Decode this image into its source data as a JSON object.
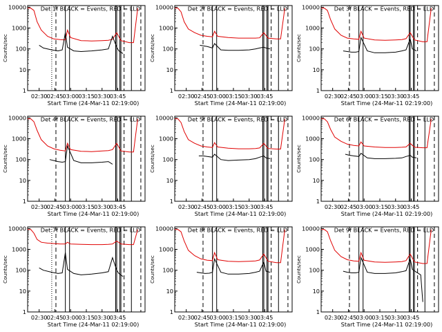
{
  "page": {
    "background": "#ffffff"
  },
  "colors": {
    "events": "#000000",
    "lld": "#e00000",
    "axis": "#000000"
  },
  "shared": {
    "ylabel": "Counts/sec",
    "xlabel": "Start Time (24-Mar-11 02:19:00)",
    "x_tick_labels": [
      "02:30",
      "02:45",
      "03:00",
      "03:15",
      "03:30",
      "03:45"
    ],
    "x_tick_minutes": [
      30,
      45,
      60,
      75,
      90,
      105
    ],
    "xlim_minutes_after_0219": [
      19,
      131
    ],
    "y_tick_labels": [
      "1",
      "10",
      "100",
      "1000",
      "10000"
    ],
    "y_tick_values": [
      1,
      10,
      100,
      1000,
      10000
    ],
    "ylim": [
      1,
      12000
    ],
    "yscale": "log"
  },
  "chart_data": [
    {
      "type": "line",
      "title": "Det 1f BLACK = Events, RED = LLD",
      "x_units": "minutes after 02:19",
      "series_colors": [
        "#000000",
        "#e00000"
      ],
      "events": {
        "x": [
          30,
          34,
          42,
          48,
          52,
          55,
          57,
          63,
          70,
          80,
          90,
          96,
          100,
          104,
          106,
          110
        ],
        "y": [
          150,
          110,
          90,
          80,
          90,
          600,
          120,
          80,
          75,
          80,
          90,
          100,
          400,
          120,
          80,
          60
        ]
      },
      "lld": {
        "x": [
          19,
          22,
          25,
          28,
          32,
          38,
          44,
          50,
          55,
          57,
          60,
          70,
          80,
          90,
          96,
          100,
          104,
          108,
          116,
          120,
          124
        ],
        "y": [
          9000,
          9000,
          7000,
          2000,
          800,
          400,
          300,
          280,
          270,
          800,
          350,
          250,
          240,
          250,
          260,
          290,
          600,
          250,
          200,
          200,
          9000
        ]
      },
      "dashed_x": [
        46,
        111,
        127
      ],
      "dotted_x": [
        42
      ],
      "solid_x": [
        55,
        59,
        103,
        104,
        107,
        108,
        118
      ]
    },
    {
      "type": "line",
      "title": "Det 2f BLACK = Events, RED = LLD",
      "x_units": "minutes after 02:19",
      "series_colors": [
        "#000000",
        "#e00000"
      ],
      "events": {
        "x": [
          43,
          46,
          50,
          55,
          57,
          63,
          70,
          80,
          90,
          96,
          100,
          104,
          106,
          110
        ],
        "y": [
          150,
          140,
          130,
          110,
          180,
          90,
          85,
          85,
          90,
          100,
          110,
          120,
          110,
          100
        ]
      },
      "lld": {
        "x": [
          19,
          22,
          25,
          28,
          32,
          38,
          44,
          50,
          55,
          57,
          60,
          70,
          80,
          90,
          96,
          100,
          104,
          108,
          116,
          120,
          124
        ],
        "y": [
          9000,
          9000,
          6000,
          2000,
          900,
          600,
          450,
          400,
          380,
          700,
          400,
          350,
          330,
          330,
          330,
          340,
          600,
          330,
          300,
          300,
          9000
        ]
      },
      "dashed_x": [
        46,
        111,
        127
      ],
      "dotted_x": [],
      "solid_x": [
        55,
        59,
        103,
        104,
        107,
        108,
        118
      ]
    },
    {
      "type": "line",
      "title": "Det 3f BLACK = Events, RED = LLD",
      "x_units": "minutes after 02:19",
      "series_colors": [
        "#000000",
        "#e00000"
      ],
      "events": {
        "x": [
          40,
          44,
          48,
          52,
          55,
          57,
          63,
          70,
          80,
          90,
          96,
          100,
          104,
          106,
          110
        ],
        "y": [
          80,
          75,
          70,
          70,
          75,
          350,
          80,
          65,
          65,
          70,
          80,
          90,
          300,
          100,
          80
        ]
      },
      "lld": {
        "x": [
          19,
          22,
          25,
          28,
          32,
          38,
          44,
          50,
          55,
          57,
          60,
          70,
          80,
          90,
          96,
          100,
          104,
          108,
          116,
          120,
          124
        ],
        "y": [
          9000,
          9000,
          7000,
          2500,
          900,
          450,
          330,
          300,
          290,
          700,
          330,
          270,
          260,
          270,
          280,
          310,
          600,
          270,
          220,
          220,
          9000
        ]
      },
      "dashed_x": [
        46,
        111,
        127
      ],
      "dotted_x": [],
      "solid_x": [
        55,
        59,
        103,
        104,
        107,
        108,
        118
      ]
    },
    {
      "type": "line",
      "title": "Det 4f BLACK = Events, RED = LLD",
      "x_units": "minutes after 02:19",
      "series_colors": [
        "#000000",
        "#e00000"
      ],
      "events": {
        "x": [
          40,
          44,
          48,
          52,
          55,
          57,
          63,
          70,
          80,
          90,
          96,
          100
        ],
        "y": [
          100,
          90,
          80,
          75,
          80,
          450,
          90,
          70,
          70,
          75,
          80,
          60
        ]
      },
      "lld": {
        "x": [
          19,
          22,
          25,
          28,
          32,
          38,
          44,
          50,
          55,
          57,
          60,
          70,
          80,
          90,
          96,
          100,
          104,
          108,
          116,
          120,
          124
        ],
        "y": [
          9000,
          9000,
          6500,
          2500,
          900,
          450,
          330,
          280,
          260,
          600,
          300,
          250,
          240,
          260,
          270,
          300,
          600,
          260,
          230,
          230,
          9000
        ]
      },
      "dashed_x": [
        46,
        111,
        127
      ],
      "dotted_x": [],
      "solid_x": [
        55,
        59,
        103,
        104,
        107,
        108,
        118
      ]
    },
    {
      "type": "line",
      "title": "Det 5f BLACK = Events, RED = LLD",
      "x_units": "minutes after 02:19",
      "series_colors": [
        "#000000",
        "#e00000"
      ],
      "events": {
        "x": [
          42,
          46,
          50,
          55,
          57,
          63,
          70,
          80,
          90,
          96,
          100,
          104,
          106,
          110
        ],
        "y": [
          150,
          150,
          140,
          130,
          180,
          100,
          90,
          95,
          100,
          110,
          130,
          150,
          120,
          110
        ]
      },
      "lld": {
        "x": [
          19,
          22,
          25,
          28,
          32,
          38,
          44,
          50,
          55,
          57,
          60,
          70,
          80,
          90,
          96,
          100,
          104,
          108,
          116,
          120,
          124
        ],
        "y": [
          9000,
          9000,
          6000,
          2200,
          900,
          600,
          450,
          400,
          380,
          650,
          400,
          350,
          330,
          330,
          340,
          360,
          600,
          340,
          320,
          320,
          9000
        ]
      },
      "dashed_x": [
        46,
        111,
        127
      ],
      "dotted_x": [],
      "solid_x": [
        55,
        59,
        103,
        104,
        107,
        108,
        118
      ]
    },
    {
      "type": "line",
      "title": "Det 6f BLACK = Events, RED = LLD",
      "x_units": "minutes after 02:19",
      "series_colors": [
        "#000000",
        "#e00000"
      ],
      "events": {
        "x": [
          42,
          46,
          50,
          55,
          57,
          63,
          70,
          80,
          90,
          96,
          100,
          104,
          106,
          110
        ],
        "y": [
          180,
          160,
          150,
          140,
          200,
          120,
          110,
          110,
          115,
          120,
          140,
          160,
          130,
          120
        ]
      },
      "lld": {
        "x": [
          19,
          22,
          25,
          28,
          32,
          38,
          44,
          50,
          55,
          57,
          60,
          70,
          80,
          90,
          96,
          100,
          104,
          108,
          116,
          120,
          124
        ],
        "y": [
          9000,
          9000,
          6500,
          2800,
          1200,
          750,
          550,
          480,
          450,
          700,
          450,
          400,
          380,
          380,
          390,
          400,
          600,
          390,
          370,
          370,
          9000
        ]
      },
      "dashed_x": [
        46,
        111,
        127
      ],
      "dotted_x": [],
      "solid_x": [
        55,
        59,
        103,
        104,
        107,
        108,
        118
      ]
    },
    {
      "type": "line",
      "title": "Det 7f BLACK = Events, RED = LLD",
      "x_units": "minutes after 02:19",
      "series_colors": [
        "#000000",
        "#e00000"
      ],
      "events": {
        "x": [
          30,
          34,
          42,
          48,
          52,
          55,
          57,
          63,
          70,
          80,
          90,
          96,
          100,
          104,
          106,
          110
        ],
        "y": [
          130,
          100,
          80,
          70,
          75,
          700,
          110,
          70,
          60,
          65,
          75,
          85,
          400,
          100,
          70,
          50
        ]
      },
      "lld": {
        "x": [
          19,
          22,
          25,
          28,
          32,
          38,
          44,
          50,
          55,
          57,
          60,
          70,
          80,
          90,
          96,
          100,
          104,
          108,
          116,
          120,
          124
        ],
        "y": [
          9000,
          9000,
          6000,
          3000,
          2200,
          2000,
          1900,
          1800,
          1800,
          2200,
          1800,
          1750,
          1700,
          1700,
          1750,
          1800,
          2500,
          1800,
          1700,
          1700,
          9000
        ]
      },
      "dashed_x": [
        46,
        111,
        127
      ],
      "dotted_x": [
        42
      ],
      "solid_x": [
        55,
        59,
        103,
        104,
        107,
        108,
        118
      ]
    },
    {
      "type": "line",
      "title": "Det 8f BLACK = Events, RED = LLD",
      "x_units": "minutes after 02:19",
      "series_colors": [
        "#000000",
        "#e00000"
      ],
      "events": {
        "x": [
          40,
          44,
          48,
          52,
          55,
          57,
          63,
          70,
          80,
          90,
          96,
          100,
          104,
          106,
          110
        ],
        "y": [
          80,
          75,
          70,
          72,
          80,
          350,
          80,
          65,
          65,
          70,
          80,
          90,
          250,
          90,
          80
        ]
      },
      "lld": {
        "x": [
          19,
          22,
          25,
          28,
          32,
          38,
          44,
          50,
          55,
          57,
          60,
          70,
          80,
          90,
          96,
          100,
          104,
          108,
          116,
          120,
          124
        ],
        "y": [
          9000,
          9000,
          7000,
          2500,
          900,
          500,
          350,
          300,
          290,
          700,
          320,
          270,
          260,
          270,
          280,
          310,
          600,
          270,
          230,
          230,
          9000
        ]
      },
      "dashed_x": [
        46,
        111,
        127
      ],
      "dotted_x": [],
      "solid_x": [
        55,
        59,
        103,
        104,
        107,
        108,
        118
      ]
    },
    {
      "type": "line",
      "title": "Det 9f BLACK = Events, RED = LLD",
      "x_units": "minutes after 02:19",
      "series_colors": [
        "#000000",
        "#e00000"
      ],
      "events": {
        "x": [
          40,
          44,
          48,
          52,
          55,
          57,
          63,
          70,
          80,
          90,
          96,
          100,
          104,
          106,
          110,
          114,
          116
        ],
        "y": [
          90,
          80,
          75,
          75,
          80,
          400,
          80,
          70,
          70,
          75,
          85,
          95,
          350,
          110,
          80,
          60,
          3
        ]
      },
      "lld": {
        "x": [
          19,
          22,
          25,
          28,
          32,
          38,
          44,
          50,
          55,
          57,
          60,
          70,
          80,
          90,
          96,
          100,
          104,
          108,
          116,
          120,
          124
        ],
        "y": [
          9000,
          9000,
          7000,
          2600,
          900,
          450,
          320,
          280,
          270,
          700,
          300,
          250,
          240,
          250,
          260,
          290,
          600,
          250,
          210,
          210,
          9000
        ]
      },
      "dashed_x": [
        46,
        111,
        127
      ],
      "dotted_x": [],
      "solid_x": [
        55,
        59,
        103,
        104,
        107,
        108,
        118
      ]
    }
  ]
}
